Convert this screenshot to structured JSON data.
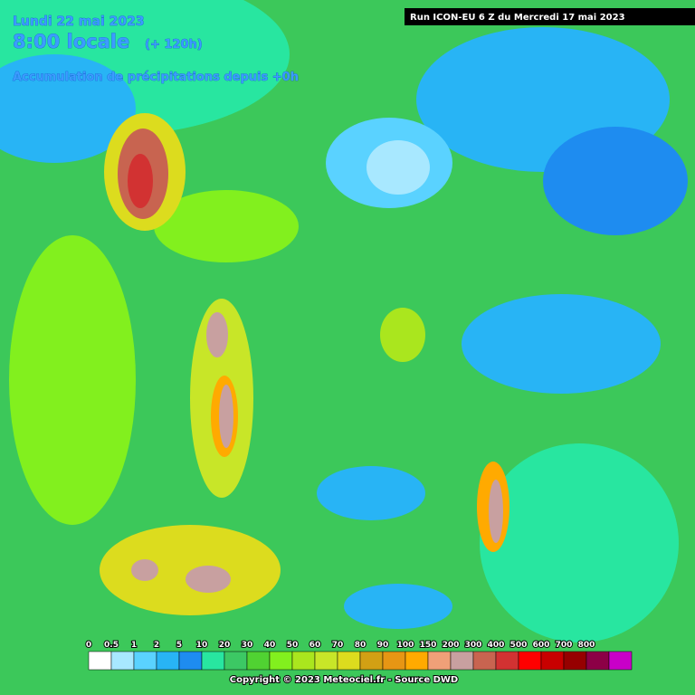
{
  "header": {
    "date": "Lundi 22 mai 2023",
    "time": "8:00 locale",
    "lead": "(+ 120h)",
    "subtitle": "Accumulation de précipitations depuis +0h",
    "run": "Run ICON-EU 6 Z du Mercredi 17 mai 2023"
  },
  "legend": {
    "items": [
      {
        "label": "0",
        "color": "#ffffff"
      },
      {
        "label": "0.5",
        "color": "#a8e8ff"
      },
      {
        "label": "1",
        "color": "#5ad2ff"
      },
      {
        "label": "2",
        "color": "#28b4f5"
      },
      {
        "label": "5",
        "color": "#1e8cf0"
      },
      {
        "label": "10",
        "color": "#28e6a0"
      },
      {
        "label": "20",
        "color": "#3cc864"
      },
      {
        "label": "30",
        "color": "#50d232"
      },
      {
        "label": "40",
        "color": "#82f01e"
      },
      {
        "label": "50",
        "color": "#aae61e"
      },
      {
        "label": "60",
        "color": "#c8e628"
      },
      {
        "label": "70",
        "color": "#dcdc1e"
      },
      {
        "label": "80",
        "color": "#d2a014"
      },
      {
        "label": "90",
        "color": "#e69614"
      },
      {
        "label": "100",
        "color": "#ffaa00"
      },
      {
        "label": "150",
        "color": "#f0a078"
      },
      {
        "label": "200",
        "color": "#c8a0a0"
      },
      {
        "label": "300",
        "color": "#c86450"
      },
      {
        "label": "400",
        "color": "#d23232"
      },
      {
        "label": "500",
        "color": "#ff0000"
      },
      {
        "label": "600",
        "color": "#c80000"
      },
      {
        "label": "700",
        "color": "#960000"
      },
      {
        "label": "800",
        "color": "#8c0046"
      }
    ],
    "extra_color": "#c800c8"
  },
  "footer": "Copyright © 2023 Meteociel.fr - Source DWD"
}
